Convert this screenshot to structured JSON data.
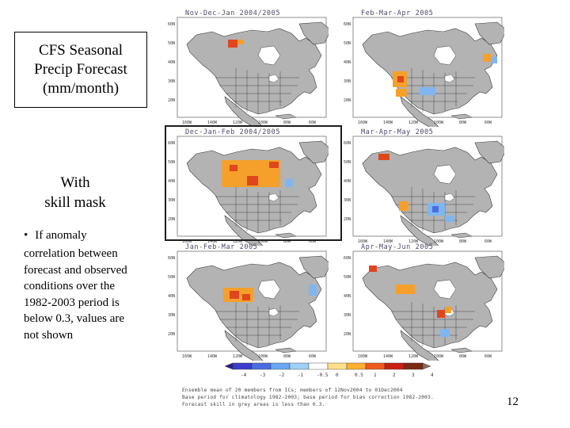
{
  "title": "CFS Seasonal Precip Forecast (mm/month)",
  "title_lines": [
    "CFS Seasonal",
    "Precip Forecast",
    "(mm/month)"
  ],
  "skill_lines": [
    "With",
    "skill mask"
  ],
  "bullet_symbol": "•",
  "bullet_first": "If anomaly",
  "bullet_rest": [
    "correlation  between",
    "forecast and observed",
    "conditions over the",
    "1982-2003 period is",
    "below 0.3, values are",
    "not shown"
  ],
  "panels": [
    {
      "id": "ndj",
      "title": "Nov-Dec-Jan 2004/2005"
    },
    {
      "id": "fma",
      "title": "Feb-Mar-Apr 2005"
    },
    {
      "id": "djf",
      "title": "Dec-Jan-Feb 2004/2005"
    },
    {
      "id": "mam",
      "title": "Mar-Apr-May 2005"
    },
    {
      "id": "jfm",
      "title": "Jan-Feb-Mar 2005"
    },
    {
      "id": "amj",
      "title": "Apr-May-Jun 2005"
    }
  ],
  "lat_ticks": [
    "60N",
    "50N",
    "40N",
    "30N",
    "20N",
    "10N"
  ],
  "lon_ticks": [
    "160W",
    "140W",
    "120W",
    "100W",
    "80W",
    "60W"
  ],
  "colorbar": {
    "labels": [
      "-4",
      "-3",
      "-2",
      "-1",
      "-0.5",
      "0",
      "0.5",
      "1",
      "2",
      "3",
      "4"
    ],
    "colors": [
      "#2c1e8c",
      "#3c3cc8",
      "#4a6ee0",
      "#6aa6f0",
      "#9fd0f5",
      "#ffffff",
      "#ffe08a",
      "#ffb030",
      "#f05a1e",
      "#c81e14",
      "#7a2a14",
      "#8a6a5a"
    ]
  },
  "footnote_lines": [
    "Ensemble mean of 20 members from ICs; members of 12Nov2004 to 01Dec2004",
    "Base period for climatology 1982-2003; base period for bias correction 1982-2003.",
    "Forecast skill in grey areas is less than 0.3."
  ],
  "page_number": "12",
  "colors": {
    "map_fill": "#b3b3b3",
    "dry_orange": "#f5a02a",
    "dry_red": "#e0461e",
    "wet_blue": "#7fb6f0",
    "highlight_border": "#1d1d1d"
  }
}
